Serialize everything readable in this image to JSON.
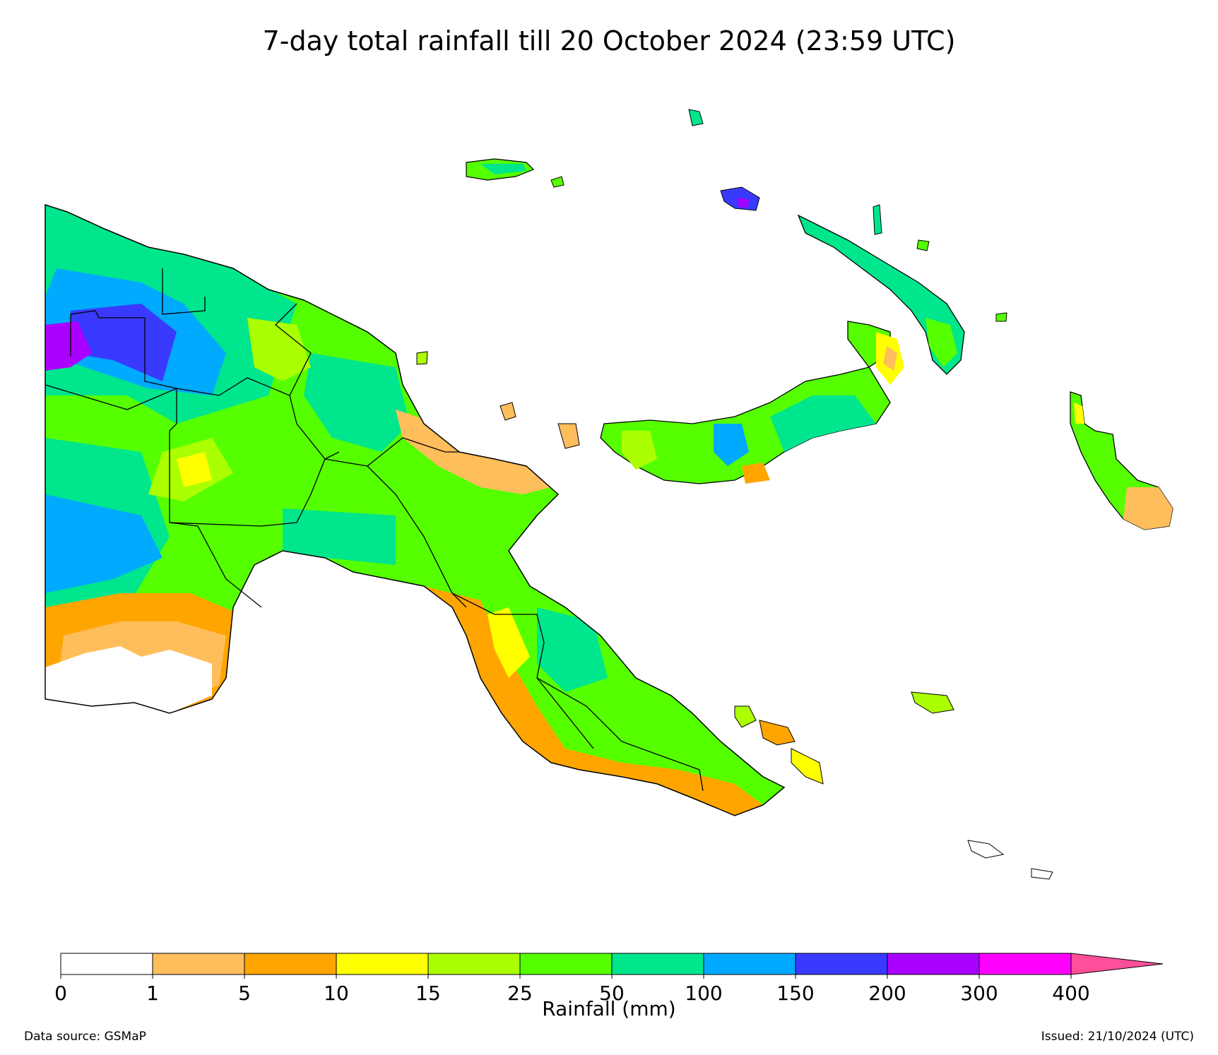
{
  "title": "7-day total rainfall till 20 October 2024 (23:59 UTC)",
  "colorbar": {
    "label": "Rainfall (mm)",
    "ticks": [
      "0",
      "1",
      "5",
      "10",
      "15",
      "25",
      "50",
      "100",
      "150",
      "200",
      "300",
      "400"
    ],
    "colors": [
      "#ffffff",
      "#ffbe5c",
      "#ffa500",
      "#ffff00",
      "#aaff00",
      "#55ff00",
      "#00e68c",
      "#00aaff",
      "#3a3aff",
      "#aa00ff",
      "#ff00ff"
    ],
    "over_color": "#ff4f9a"
  },
  "footer": {
    "source": "Data source: GSMaP",
    "issued": "Issued: 21/10/2024 (UTC)"
  }
}
